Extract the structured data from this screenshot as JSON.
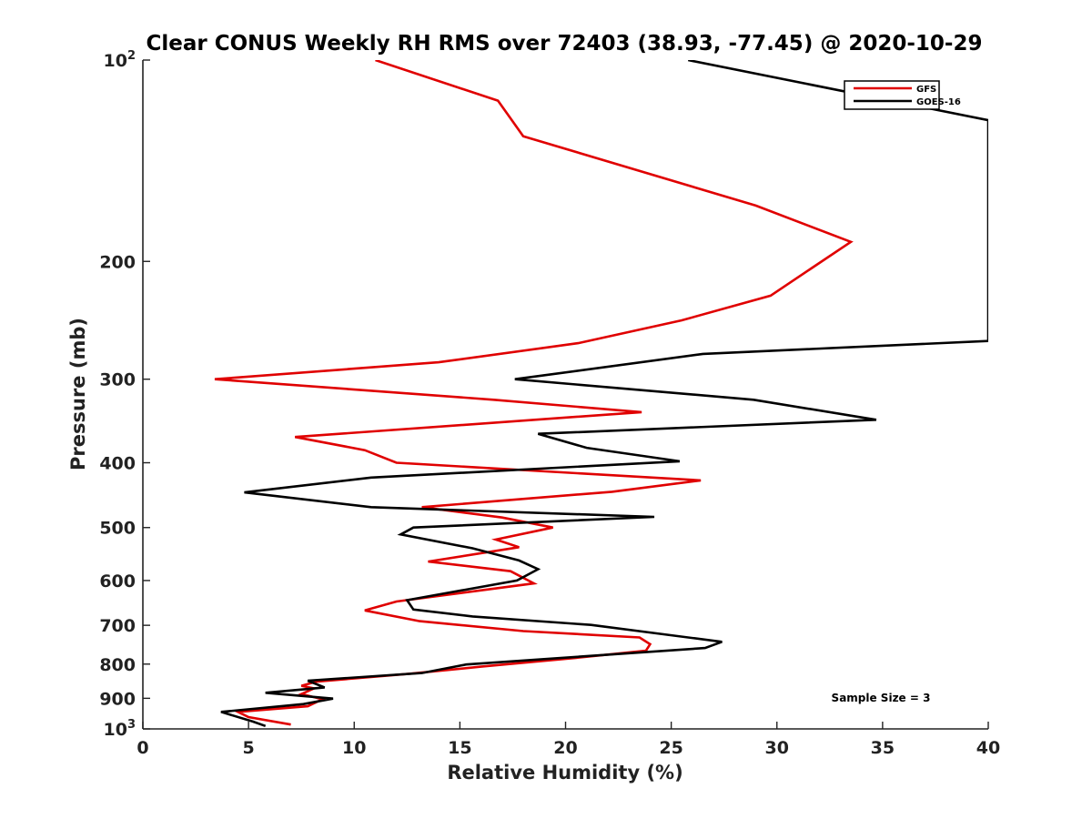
{
  "chart_data": {
    "type": "line",
    "title": "Clear CONUS Weekly RH RMS over 72403 (38.93, -77.45) @ 2020-10-29",
    "xlabel": "Relative Humidity (%)",
    "ylabel": "Pressure (mb)",
    "xlim": [
      0,
      40
    ],
    "ylim": [
      100,
      1000
    ],
    "y_scale": "log",
    "y_inverted": true,
    "grid": false,
    "legend_position": "top-right",
    "annotation": "Sample Size = 3",
    "x_ticks": [
      0,
      5,
      10,
      15,
      20,
      25,
      30,
      35,
      40
    ],
    "x_tick_labels": [
      "0",
      "5",
      "10",
      "15",
      "20",
      "25",
      "30",
      "35",
      "40"
    ],
    "y_ticks": [
      {
        "value": 100,
        "base": "10",
        "exp": "2"
      },
      {
        "value": 200,
        "base": "200",
        "exp": ""
      },
      {
        "value": 300,
        "base": "300",
        "exp": ""
      },
      {
        "value": 400,
        "base": "400",
        "exp": ""
      },
      {
        "value": 500,
        "base": "500",
        "exp": ""
      },
      {
        "value": 600,
        "base": "600",
        "exp": ""
      },
      {
        "value": 700,
        "base": "700",
        "exp": ""
      },
      {
        "value": 800,
        "base": "800",
        "exp": ""
      },
      {
        "value": 900,
        "base": "900",
        "exp": ""
      },
      {
        "value": 1000,
        "base": "10",
        "exp": "3"
      }
    ],
    "series": [
      {
        "name": "GFS",
        "color": "#e00000",
        "points": [
          [
            11.0,
            100
          ],
          [
            16.8,
            115
          ],
          [
            18.0,
            130
          ],
          [
            29.0,
            165
          ],
          [
            33.5,
            187
          ],
          [
            29.7,
            225
          ],
          [
            25.5,
            245
          ],
          [
            20.6,
            265
          ],
          [
            14.0,
            283
          ],
          [
            3.4,
            300
          ],
          [
            16.6,
            322
          ],
          [
            23.6,
            336
          ],
          [
            7.2,
            366
          ],
          [
            10.5,
            383
          ],
          [
            12.0,
            400
          ],
          [
            26.4,
            425
          ],
          [
            22.2,
            442
          ],
          [
            13.2,
            466
          ],
          [
            17.0,
            483
          ],
          [
            19.4,
            500
          ],
          [
            16.7,
            521
          ],
          [
            17.8,
            535
          ],
          [
            13.5,
            562
          ],
          [
            17.4,
            581
          ],
          [
            18.5,
            606
          ],
          [
            12.0,
            645
          ],
          [
            10.5,
            665
          ],
          [
            13.1,
            690
          ],
          [
            18.0,
            714
          ],
          [
            23.5,
            730
          ],
          [
            24.0,
            747
          ],
          [
            23.8,
            764
          ],
          [
            20.5,
            783
          ],
          [
            16.0,
            807
          ],
          [
            12.6,
            827
          ],
          [
            8.2,
            850
          ],
          [
            7.5,
            862
          ],
          [
            8.1,
            870
          ],
          [
            7.5,
            887
          ],
          [
            8.5,
            903
          ],
          [
            7.8,
            925
          ],
          [
            4.5,
            943
          ],
          [
            5.0,
            960
          ],
          [
            7.0,
            985
          ]
        ]
      },
      {
        "name": "GOES-16",
        "color": "#000000",
        "points": [
          [
            25.8,
            100
          ],
          [
            40.0,
            123
          ],
          [
            40.0,
            263
          ],
          [
            26.5,
            275
          ],
          [
            17.6,
            300
          ],
          [
            28.9,
            322
          ],
          [
            34.7,
            345
          ],
          [
            18.7,
            362
          ],
          [
            21.0,
            380
          ],
          [
            25.4,
            398
          ],
          [
            10.8,
            421
          ],
          [
            4.8,
            443
          ],
          [
            10.8,
            466
          ],
          [
            24.2,
            482
          ],
          [
            12.8,
            500
          ],
          [
            12.2,
            512
          ],
          [
            15.6,
            537
          ],
          [
            17.8,
            560
          ],
          [
            18.7,
            577
          ],
          [
            17.7,
            600
          ],
          [
            12.5,
            642
          ],
          [
            12.8,
            663
          ],
          [
            15.6,
            679
          ],
          [
            21.2,
            699
          ],
          [
            27.4,
            741
          ],
          [
            26.6,
            757
          ],
          [
            15.3,
            801
          ],
          [
            13.2,
            825
          ],
          [
            7.8,
            847
          ],
          [
            8.6,
            867
          ],
          [
            5.8,
            883
          ],
          [
            9.0,
            901
          ],
          [
            7.6,
            918
          ],
          [
            3.7,
            943
          ],
          [
            5.2,
            975
          ],
          [
            5.8,
            990
          ]
        ]
      }
    ]
  }
}
